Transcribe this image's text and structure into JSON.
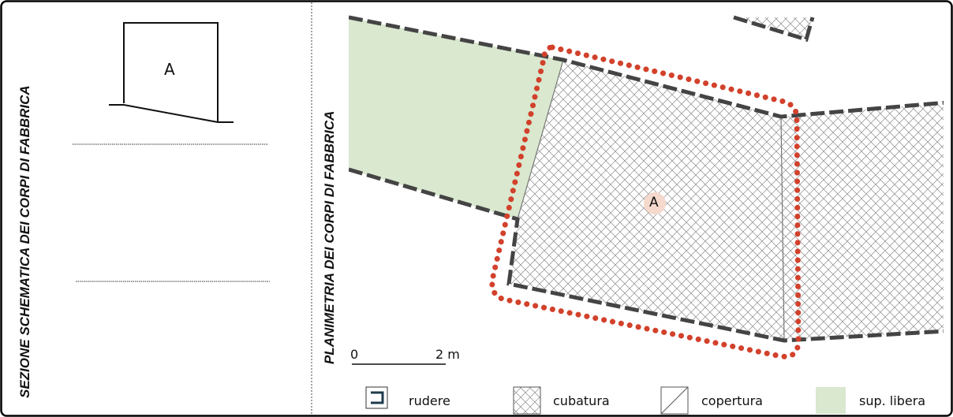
{
  "left_panel": {
    "title": "SEZIONE SCHEMATICA DEI CORPI DI FABBRICA",
    "section_label": "A"
  },
  "right_panel": {
    "title": "PLANIMETRIA DEI CORPI DI FABBRICA",
    "building_label": "A",
    "scale_start": "0",
    "scale_end": "2 m"
  },
  "legend": [
    {
      "key": "rudere",
      "label": "rudere"
    },
    {
      "key": "cubatura",
      "label": "cubatura"
    },
    {
      "key": "copertura",
      "label": "copertura"
    },
    {
      "key": "sup_libera",
      "label": "sup. libera"
    }
  ],
  "colors": {
    "highlight_dots": "#d2412b",
    "free_surface": "#d9e8cf",
    "label_halo": "#f5d9cc",
    "dashed_border": "#444444"
  }
}
